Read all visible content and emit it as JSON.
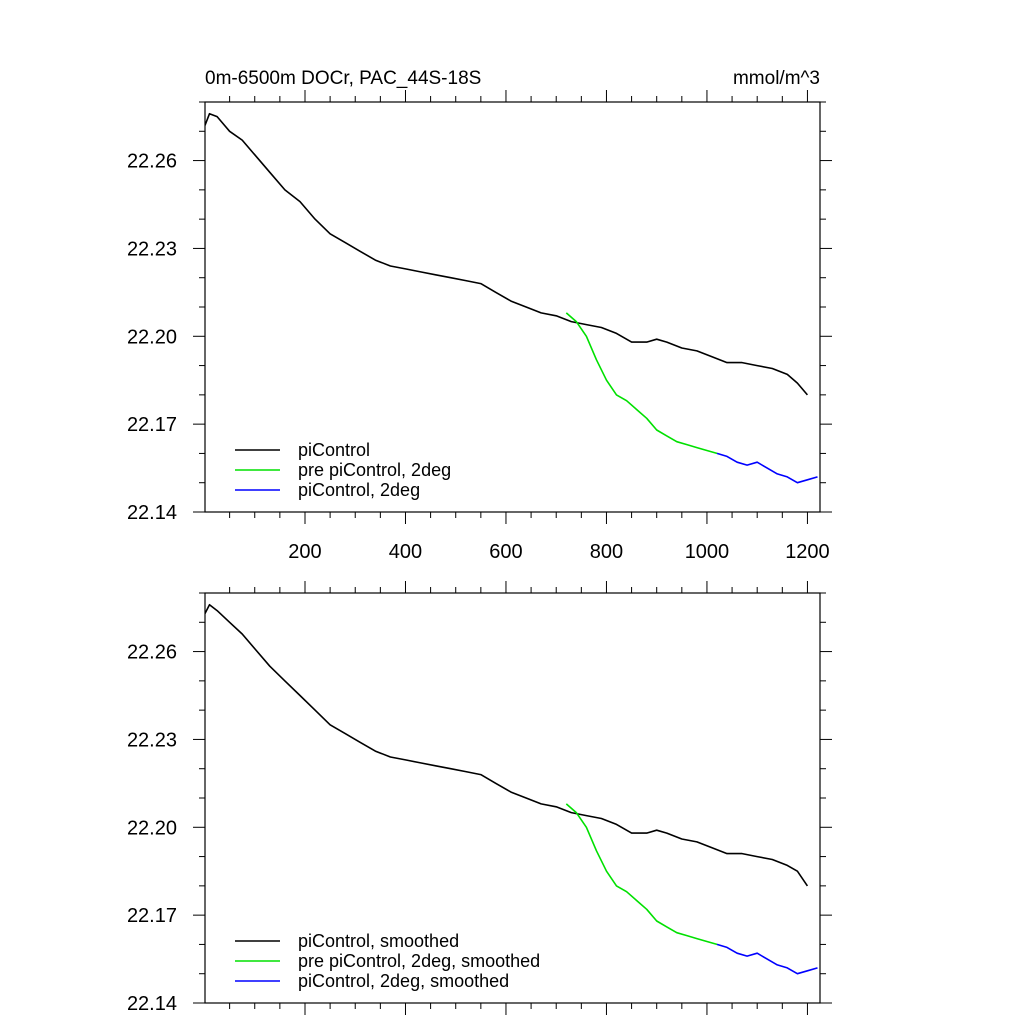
{
  "title_left": "0m-6500m DOCr, PAC_44S-18S",
  "title_right": "mmol/m^3",
  "chart_data": [
    {
      "type": "line",
      "title": "0m-6500m DOCr, PAC_44S-18S",
      "units": "mmol/m^3",
      "xlim": [
        1,
        1225
      ],
      "ylim": [
        22.14,
        22.28
      ],
      "xticks": [
        "200",
        "400",
        "600",
        "800",
        "1000",
        "1200"
      ],
      "xtick_values": [
        200,
        400,
        600,
        800,
        1000,
        1200
      ],
      "yticks": [
        "22.26",
        "22.23",
        "22.20",
        "22.17",
        "22.14"
      ],
      "ytick_values": [
        22.26,
        22.23,
        22.2,
        22.17,
        22.14
      ],
      "legend_position": "bottom-left",
      "series": [
        {
          "name": "piControl",
          "color": "#000000",
          "x": [
            1,
            10,
            25,
            50,
            75,
            100,
            130,
            160,
            190,
            220,
            250,
            280,
            310,
            340,
            370,
            400,
            430,
            460,
            490,
            520,
            550,
            580,
            610,
            640,
            670,
            700,
            730,
            760,
            790,
            820,
            850,
            880,
            900,
            920,
            950,
            980,
            1010,
            1040,
            1070,
            1100,
            1130,
            1160,
            1180,
            1200
          ],
          "y": [
            22.272,
            22.276,
            22.275,
            22.27,
            22.267,
            22.262,
            22.256,
            22.25,
            22.246,
            22.24,
            22.235,
            22.232,
            22.229,
            22.226,
            22.224,
            22.223,
            22.222,
            22.221,
            22.22,
            22.219,
            22.218,
            22.215,
            22.212,
            22.21,
            22.208,
            22.207,
            22.205,
            22.204,
            22.203,
            22.201,
            22.198,
            22.198,
            22.199,
            22.198,
            22.196,
            22.195,
            22.193,
            22.191,
            22.191,
            22.19,
            22.189,
            22.187,
            22.184,
            22.18
          ]
        },
        {
          "name": "pre piControl, 2deg",
          "color": "#00e000",
          "x": [
            720,
            740,
            760,
            780,
            800,
            820,
            840,
            860,
            880,
            900,
            920,
            940,
            960,
            980,
            1000,
            1020
          ],
          "y": [
            22.208,
            22.205,
            22.2,
            22.192,
            22.185,
            22.18,
            22.178,
            22.175,
            22.172,
            22.168,
            22.166,
            22.164,
            22.163,
            22.162,
            22.161,
            22.16
          ]
        },
        {
          "name": "piControl, 2deg",
          "color": "#0000ff",
          "x": [
            1020,
            1040,
            1060,
            1080,
            1100,
            1120,
            1140,
            1160,
            1180,
            1200,
            1220
          ],
          "y": [
            22.16,
            22.159,
            22.157,
            22.156,
            22.157,
            22.155,
            22.153,
            22.152,
            22.15,
            22.151,
            22.152
          ]
        }
      ]
    },
    {
      "type": "line",
      "xlim": [
        1,
        1225
      ],
      "ylim": [
        22.14,
        22.28
      ],
      "yticks": [
        "22.26",
        "22.23",
        "22.20",
        "22.17",
        "22.14"
      ],
      "ytick_values": [
        22.26,
        22.23,
        22.2,
        22.17,
        22.14
      ],
      "legend_position": "bottom-left",
      "series": [
        {
          "name": "piControl, smoothed",
          "color": "#000000",
          "x": [
            1,
            10,
            25,
            50,
            75,
            100,
            130,
            160,
            190,
            220,
            250,
            280,
            310,
            340,
            370,
            400,
            430,
            460,
            490,
            520,
            550,
            580,
            610,
            640,
            670,
            700,
            730,
            760,
            790,
            820,
            850,
            880,
            900,
            920,
            950,
            980,
            1010,
            1040,
            1070,
            1100,
            1130,
            1160,
            1180,
            1200
          ],
          "y": [
            22.273,
            22.276,
            22.274,
            22.27,
            22.266,
            22.261,
            22.255,
            22.25,
            22.245,
            22.24,
            22.235,
            22.232,
            22.229,
            22.226,
            22.224,
            22.223,
            22.222,
            22.221,
            22.22,
            22.219,
            22.218,
            22.215,
            22.212,
            22.21,
            22.208,
            22.207,
            22.205,
            22.204,
            22.203,
            22.201,
            22.198,
            22.198,
            22.199,
            22.198,
            22.196,
            22.195,
            22.193,
            22.191,
            22.191,
            22.19,
            22.189,
            22.187,
            22.185,
            22.18
          ]
        },
        {
          "name": "pre piControl, 2deg, smoothed",
          "color": "#00e000",
          "x": [
            720,
            740,
            760,
            780,
            800,
            820,
            840,
            860,
            880,
            900,
            920,
            940,
            960,
            980,
            1000,
            1020
          ],
          "y": [
            22.208,
            22.205,
            22.2,
            22.192,
            22.185,
            22.18,
            22.178,
            22.175,
            22.172,
            22.168,
            22.166,
            22.164,
            22.163,
            22.162,
            22.161,
            22.16
          ]
        },
        {
          "name": "piControl, 2deg, smoothed",
          "color": "#0000ff",
          "x": [
            1020,
            1040,
            1060,
            1080,
            1100,
            1120,
            1140,
            1160,
            1180,
            1200,
            1220
          ],
          "y": [
            22.16,
            22.159,
            22.157,
            22.156,
            22.157,
            22.155,
            22.153,
            22.152,
            22.15,
            22.151,
            22.152
          ]
        }
      ]
    }
  ]
}
